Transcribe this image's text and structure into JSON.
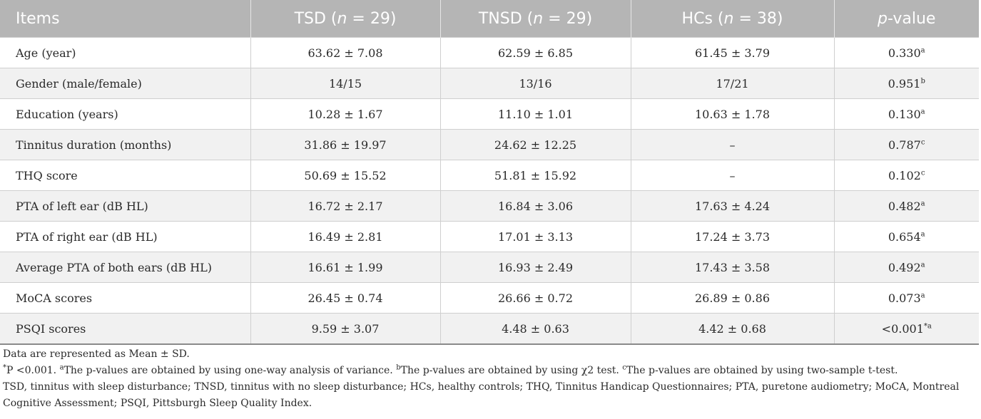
{
  "table": {
    "headers": [
      {
        "pre": "Items",
        "it": "",
        "post": ""
      },
      {
        "pre": "TSD (",
        "it": "n",
        "post": " = 29)"
      },
      {
        "pre": "TNSD (",
        "it": "n",
        "post": " = 29)"
      },
      {
        "pre": "HCs (",
        "it": "n",
        "post": " = 38)"
      },
      {
        "pre": "",
        "it": "p",
        "post": "-value"
      }
    ],
    "rows": [
      {
        "item": "Age (year)",
        "tsd": "63.62 ± 7.08",
        "tnsd": "62.59 ± 6.85",
        "hcs": "61.45 ± 3.79",
        "p": "0.330",
        "sup": "a"
      },
      {
        "item": "Gender (male/female)",
        "tsd": "14/15",
        "tnsd": "13/16",
        "hcs": "17/21",
        "p": "0.951",
        "sup": "b"
      },
      {
        "item": "Education (years)",
        "tsd": "10.28 ± 1.67",
        "tnsd": "11.10 ± 1.01",
        "hcs": "10.63 ± 1.78",
        "p": "0.130",
        "sup": "a"
      },
      {
        "item": "Tinnitus duration (months)",
        "tsd": "31.86 ± 19.97",
        "tnsd": "24.62 ± 12.25",
        "hcs": "–",
        "p": "0.787",
        "sup": "c"
      },
      {
        "item": "THQ score",
        "tsd": "50.69 ± 15.52",
        "tnsd": "51.81 ± 15.92",
        "hcs": "–",
        "p": "0.102",
        "sup": "c"
      },
      {
        "item": "PTA of left ear (dB HL)",
        "tsd": "16.72 ± 2.17",
        "tnsd": "16.84 ± 3.06",
        "hcs": "17.63 ± 4.24",
        "p": "0.482",
        "sup": "a"
      },
      {
        "item": "PTA of right ear (dB HL)",
        "tsd": "16.49 ± 2.81",
        "tnsd": "17.01 ± 3.13",
        "hcs": "17.24 ± 3.73",
        "p": "0.654",
        "sup": "a"
      },
      {
        "item": "Average PTA of both ears (dB HL)",
        "tsd": "16.61 ± 1.99",
        "tnsd": "16.93 ± 2.49",
        "hcs": "17.43 ± 3.58",
        "p": "0.492",
        "sup": "a"
      },
      {
        "item": "MoCA scores",
        "tsd": "26.45 ± 0.74",
        "tnsd": "26.66 ± 0.72",
        "hcs": "26.89 ± 0.86",
        "p": "0.073",
        "sup": "a"
      },
      {
        "item": "PSQI scores",
        "tsd": "9.59 ± 3.07",
        "tnsd": "4.48 ± 0.63",
        "hcs": "4.42 ± 0.68",
        "p": "<0.001",
        "sup": "*a"
      }
    ]
  },
  "notes": {
    "line1": "Data are represented as Mean ± SD.",
    "star": "*",
    "line2_a": "P <0.001. ",
    "sup_a": "a",
    "line2_b": "The p-values are obtained by using one-way analysis of variance. ",
    "sup_b": "b",
    "line2_c": "The p-values are obtained by using χ2 test. ",
    "sup_c": "c",
    "line2_d": "The p-values are obtained by using two-sample t-test.",
    "line3": "TSD, tinnitus with sleep disturbance; TNSD, tinnitus with no sleep disturbance; HCs, healthy controls; THQ, Tinnitus Handicap Questionnaires; PTA, puretone audiometry; MoCA, Montreal Cognitive Assessment; PSQI, Pittsburgh Sleep Quality Index."
  }
}
